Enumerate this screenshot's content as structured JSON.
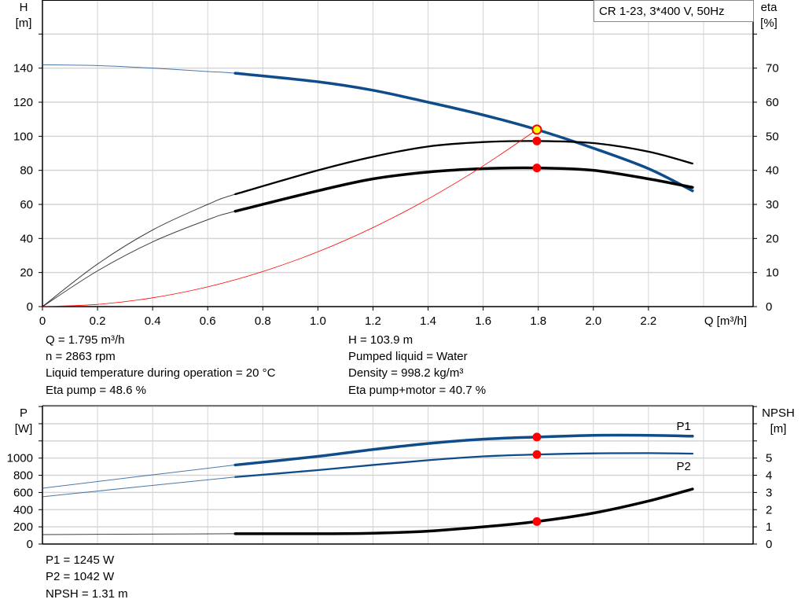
{
  "chart_data": [
    {
      "type": "line",
      "title": "CR 1-23, 3*400 V, 50Hz",
      "xlabel": "Q [m³/h]",
      "ylabel": "H\n[m]",
      "ylabel_lines": [
        "H",
        "[m]"
      ],
      "y2label_lines": [
        "eta",
        "[%]"
      ],
      "xlim": [
        0,
        2.58
      ],
      "ylim": [
        0,
        180
      ],
      "y2lim": [
        0,
        90
      ],
      "grid": true,
      "x_ticks": [
        "0",
        "0.2",
        "0.4",
        "0.6",
        "0.8",
        "1.0",
        "1.2",
        "1.4",
        "1.6",
        "1.8",
        "2.0",
        "2.2"
      ],
      "y_ticks": [
        "0",
        "20",
        "40",
        "60",
        "80",
        "100",
        "120",
        "140"
      ],
      "y2_ticks": [
        "0",
        "10",
        "20",
        "30",
        "40",
        "50",
        "60",
        "70"
      ],
      "series": [
        {
          "key": "H",
          "axis": "left",
          "color": "#0f4c8a",
          "thick_from": 0.7,
          "x": [
            0,
            0.2,
            0.4,
            0.6,
            0.7,
            1.0,
            1.2,
            1.4,
            1.6,
            1.795,
            2.0,
            2.2,
            2.36
          ],
          "y": [
            142,
            141.5,
            140,
            138,
            137,
            132,
            127,
            120,
            112.5,
            103.9,
            93,
            81,
            68
          ]
        },
        {
          "key": "eta_pump",
          "axis": "right",
          "color": "#000000",
          "thick_from": 0.7,
          "x": [
            0,
            0.2,
            0.4,
            0.6,
            0.7,
            1.0,
            1.2,
            1.4,
            1.6,
            1.795,
            2.0,
            2.2,
            2.36
          ],
          "y": [
            0,
            12.5,
            22.5,
            30,
            33,
            40,
            44,
            47,
            48.3,
            48.6,
            48,
            45.5,
            42
          ]
        },
        {
          "key": "eta_pump_motor",
          "axis": "right",
          "color": "#000000",
          "thick_from": 0.7,
          "x": [
            0,
            0.2,
            0.4,
            0.6,
            0.7,
            1.0,
            1.2,
            1.4,
            1.6,
            1.795,
            2.0,
            2.2,
            2.36
          ],
          "y": [
            0,
            10.5,
            19,
            25.5,
            28,
            34,
            37.5,
            39.5,
            40.5,
            40.7,
            40,
            37.5,
            35
          ]
        },
        {
          "key": "system",
          "axis": "left",
          "color": "#ff0000",
          "thick_from": null,
          "x": [
            0,
            0.2,
            0.4,
            0.6,
            0.8,
            1.0,
            1.2,
            1.4,
            1.6,
            1.795
          ],
          "y": [
            0,
            1.29,
            5.16,
            11.6,
            20.6,
            32.2,
            46.4,
            63.2,
            82.6,
            103.9
          ]
        }
      ],
      "points": [
        {
          "key": "duty_point",
          "axis": "left",
          "x": 1.795,
          "y": 103.9,
          "fill": "#ffff00",
          "stroke": "#ff0000"
        },
        {
          "key": "eta_pump_point",
          "axis": "right",
          "x": 1.795,
          "y": 48.6,
          "fill": "#ff0000",
          "stroke": "#ff0000"
        },
        {
          "key": "eta_pump_motor_point",
          "axis": "right",
          "x": 1.795,
          "y": 40.7,
          "fill": "#ff0000",
          "stroke": "#ff0000"
        }
      ]
    },
    {
      "type": "line",
      "ylabel_lines": [
        "P",
        "[W]"
      ],
      "y2label_lines": [
        "NPSH",
        "[m]"
      ],
      "xlim": [
        0,
        2.58
      ],
      "ylim": [
        0,
        1610
      ],
      "y2lim": [
        0,
        8.05
      ],
      "grid": true,
      "y_ticks": [
        "0",
        "200",
        "400",
        "600",
        "800",
        "1000"
      ],
      "y2_ticks": [
        "0",
        "1",
        "2",
        "3",
        "4",
        "5"
      ],
      "series": [
        {
          "key": "P1",
          "name": "P1",
          "axis": "left",
          "color": "#0f4c8a",
          "thick_from": 0.7,
          "x": [
            0,
            0.7,
            1.0,
            1.2,
            1.4,
            1.6,
            1.795,
            2.0,
            2.2,
            2.36
          ],
          "y": [
            650,
            920,
            1020,
            1100,
            1170,
            1220,
            1245,
            1265,
            1265,
            1255
          ]
        },
        {
          "key": "P2",
          "name": "P2",
          "axis": "left",
          "color": "#0f4c8a",
          "thick_from": 0.7,
          "x": [
            0,
            0.7,
            1.0,
            1.2,
            1.4,
            1.6,
            1.795,
            2.0,
            2.2,
            2.36
          ],
          "y": [
            550,
            780,
            860,
            920,
            975,
            1020,
            1042,
            1055,
            1058,
            1052
          ]
        },
        {
          "key": "NPSH",
          "axis": "right",
          "color": "#000000",
          "thick_from": 0.7,
          "x": [
            0,
            0.7,
            1.0,
            1.2,
            1.4,
            1.6,
            1.795,
            2.0,
            2.2,
            2.36
          ],
          "y": [
            0.55,
            0.6,
            0.6,
            0.63,
            0.75,
            1.0,
            1.31,
            1.8,
            2.5,
            3.2
          ]
        }
      ],
      "points": [
        {
          "key": "P1_point",
          "axis": "left",
          "x": 1.795,
          "y": 1245,
          "fill": "#ff0000",
          "stroke": "#ff0000"
        },
        {
          "key": "P2_point",
          "axis": "left",
          "x": 1.795,
          "y": 1042,
          "fill": "#ff0000",
          "stroke": "#ff0000"
        },
        {
          "key": "NPSH_point",
          "axis": "right",
          "x": 1.795,
          "y": 1.31,
          "fill": "#ff0000",
          "stroke": "#ff0000"
        }
      ]
    }
  ],
  "results_top": {
    "q": "Q = 1.795 m³/h",
    "n": "n = 2863 rpm",
    "temp": "Liquid temperature during operation = 20 °C",
    "eta_pump": "Eta pump = 48.6 %",
    "h": "H = 103.9 m",
    "liquid": "Pumped liquid = Water",
    "density": "Density = 998.2 kg/m³",
    "eta_pm": "Eta pump+motor = 40.7 %"
  },
  "results_bottom": {
    "p1": "P1 = 1245 W",
    "p2": "P2 = 1042 W",
    "npsh": "NPSH = 1.31 m"
  }
}
